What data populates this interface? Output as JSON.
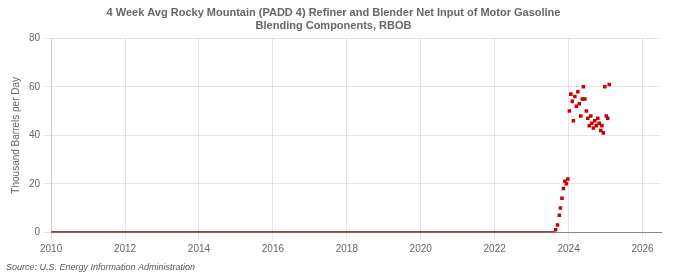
{
  "chart_data": {
    "type": "scatter",
    "title": "4 Week Avg Rocky Mountain (PADD 4) Refiner and Blender Net Input of Motor Gasoline\nBlending Components, RBOB",
    "ylabel": "Thousand Barrels per Day",
    "annotations": [
      "Source: U.S. Energy Information Administration"
    ],
    "xlim": [
      2010,
      2026.5
    ],
    "xticks": [
      2010,
      2012,
      2014,
      2016,
      2018,
      2020,
      2022,
      2024,
      2026
    ],
    "ylim": [
      0,
      80
    ],
    "yticks": [
      0,
      20,
      40,
      60,
      80
    ],
    "grid": true,
    "series": [
      {
        "type": "line",
        "color": "#7a0000",
        "line_style": "solid",
        "x": [
          2010,
          2023.62
        ],
        "values": [
          0,
          0
        ]
      },
      {
        "type": "scatter",
        "color": "#cc0000",
        "marker": "square",
        "x": [
          2023.65,
          2023.7,
          2023.75,
          2023.78,
          2023.82,
          2023.86,
          2023.9,
          2023.94,
          2023.98,
          2024.02,
          2024.06,
          2024.1,
          2024.13,
          2024.17,
          2024.21,
          2024.25,
          2024.29,
          2024.33,
          2024.37,
          2024.4,
          2024.44,
          2024.48,
          2024.52,
          2024.56,
          2024.6,
          2024.63,
          2024.67,
          2024.71,
          2024.75,
          2024.79,
          2024.83,
          2024.87,
          2024.9,
          2024.94,
          2024.98,
          2025.02,
          2025.06,
          2025.1
        ],
        "values": [
          1,
          3,
          7,
          10,
          14,
          18,
          21,
          20,
          22,
          50,
          57,
          54,
          46,
          56,
          52,
          58,
          53,
          48,
          55,
          60,
          55,
          50,
          47,
          44,
          48,
          45,
          43,
          46,
          44,
          47,
          45,
          42,
          44,
          41,
          60,
          48,
          47,
          61
        ]
      }
    ]
  }
}
